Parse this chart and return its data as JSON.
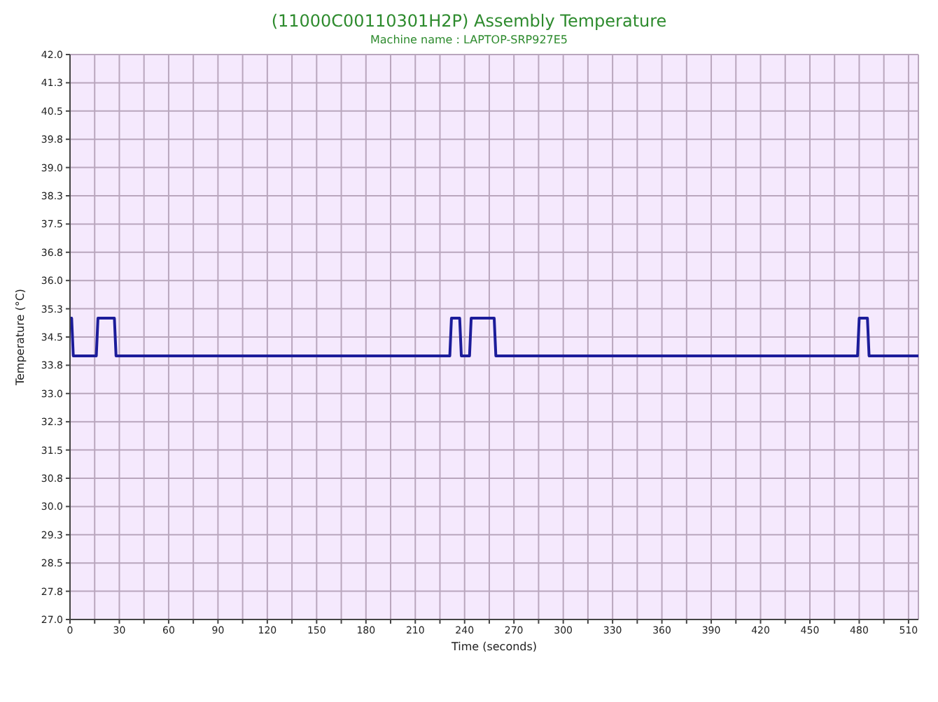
{
  "chart_data": {
    "type": "line",
    "title": "(11000C00110301H2P) Assembly Temperature",
    "subtitle": "Machine name : LAPTOP-SRP927E5",
    "xlabel": "Time (seconds)",
    "ylabel": "Temperature (°C)",
    "x": [
      0,
      1,
      2,
      16,
      17,
      27,
      28,
      231,
      232,
      237,
      238,
      243,
      244,
      258,
      259,
      479,
      480,
      485,
      486,
      516
    ],
    "series": [
      {
        "color": "#1c1c9a",
        "values": [
          35,
          35,
          34,
          34,
          35,
          35,
          34,
          34,
          35,
          35,
          34,
          34,
          35,
          35,
          34,
          34,
          35,
          35,
          34,
          34
        ]
      }
    ],
    "xlim": [
      0,
      516
    ],
    "xticks": [
      0,
      {
        "value": 15,
        "label": null
      },
      30,
      {
        "value": 45,
        "label": null
      },
      60,
      {
        "value": 75,
        "label": null
      },
      90,
      {
        "value": 105,
        "label": null
      },
      120,
      {
        "value": 135,
        "label": null
      },
      150,
      {
        "value": 165,
        "label": null
      },
      180,
      {
        "value": 195,
        "label": null
      },
      210,
      {
        "value": 225,
        "label": null
      },
      240,
      {
        "value": 255,
        "label": null
      },
      270,
      {
        "value": 285,
        "label": null
      },
      300,
      {
        "value": 315,
        "label": null
      },
      330,
      {
        "value": 345,
        "label": null
      },
      360,
      {
        "value": 375,
        "label": null
      },
      390,
      {
        "value": 405,
        "label": null
      },
      420,
      {
        "value": 435,
        "label": null
      },
      450,
      {
        "value": 465,
        "label": null
      },
      480,
      {
        "value": 495,
        "label": null
      },
      510
    ],
    "ylim": [
      27,
      42
    ],
    "yticks": [
      {
        "value": 27,
        "label": "27.0"
      },
      {
        "value": 27.75,
        "label": "27.8"
      },
      {
        "value": 28.5,
        "label": "28.5"
      },
      {
        "value": 29.25,
        "label": "29.3"
      },
      {
        "value": 30,
        "label": "30.0"
      },
      {
        "value": 30.75,
        "label": "30.8"
      },
      {
        "value": 31.5,
        "label": "31.5"
      },
      {
        "value": 32.25,
        "label": "32.3"
      },
      {
        "value": 33,
        "label": "33.0"
      },
      {
        "value": 33.75,
        "label": "33.8"
      },
      {
        "value": 34.5,
        "label": "34.5"
      },
      {
        "value": 35.25,
        "label": "35.3"
      },
      {
        "value": 36,
        "label": "36.0"
      },
      {
        "value": 36.75,
        "label": "36.8"
      },
      {
        "value": 37.5,
        "label": "37.5"
      },
      {
        "value": 38.25,
        "label": "38.3"
      },
      {
        "value": 39,
        "label": "39.0"
      },
      {
        "value": 39.75,
        "label": "39.8"
      },
      {
        "value": 40.5,
        "label": "40.5"
      },
      {
        "value": 41.25,
        "label": "41.3"
      },
      {
        "value": 42,
        "label": "42.0"
      }
    ],
    "grid": true,
    "marker": "none",
    "line_style": "solid"
  }
}
